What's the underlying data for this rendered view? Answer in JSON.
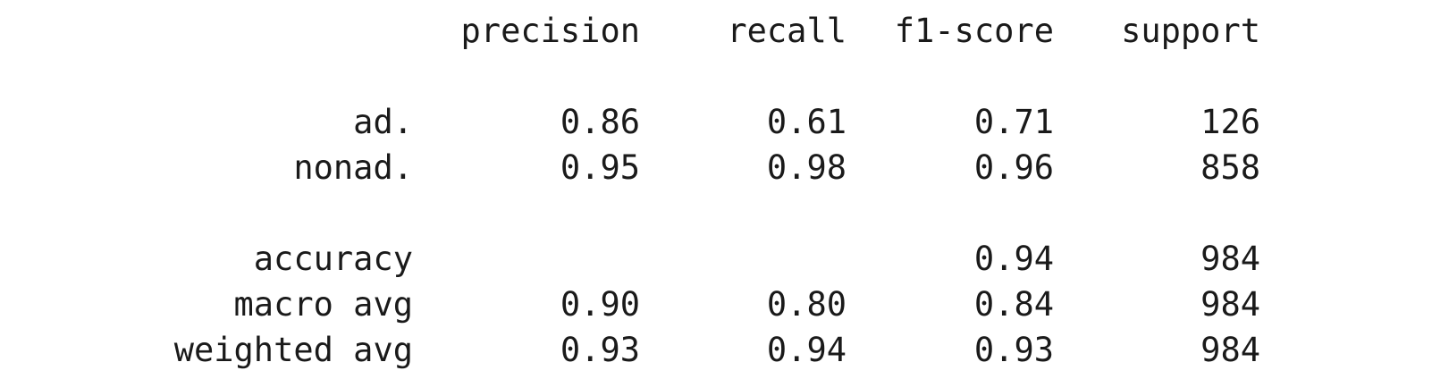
{
  "headers": [
    "precision",
    "recall",
    "f1-score",
    "support"
  ],
  "classes": [
    {
      "label": "ad.",
      "precision": "0.86",
      "recall": "0.61",
      "f1": "0.71",
      "support": "126"
    },
    {
      "label": "nonad.",
      "precision": "0.95",
      "recall": "0.98",
      "f1": "0.96",
      "support": "858"
    }
  ],
  "accuracy": {
    "label": "accuracy",
    "f1": "0.94",
    "support": "984"
  },
  "averages": [
    {
      "label": "macro avg",
      "precision": "0.90",
      "recall": "0.80",
      "f1": "0.84",
      "support": "984"
    },
    {
      "label": "weighted avg",
      "precision": "0.93",
      "recall": "0.94",
      "f1": "0.93",
      "support": "984"
    }
  ]
}
